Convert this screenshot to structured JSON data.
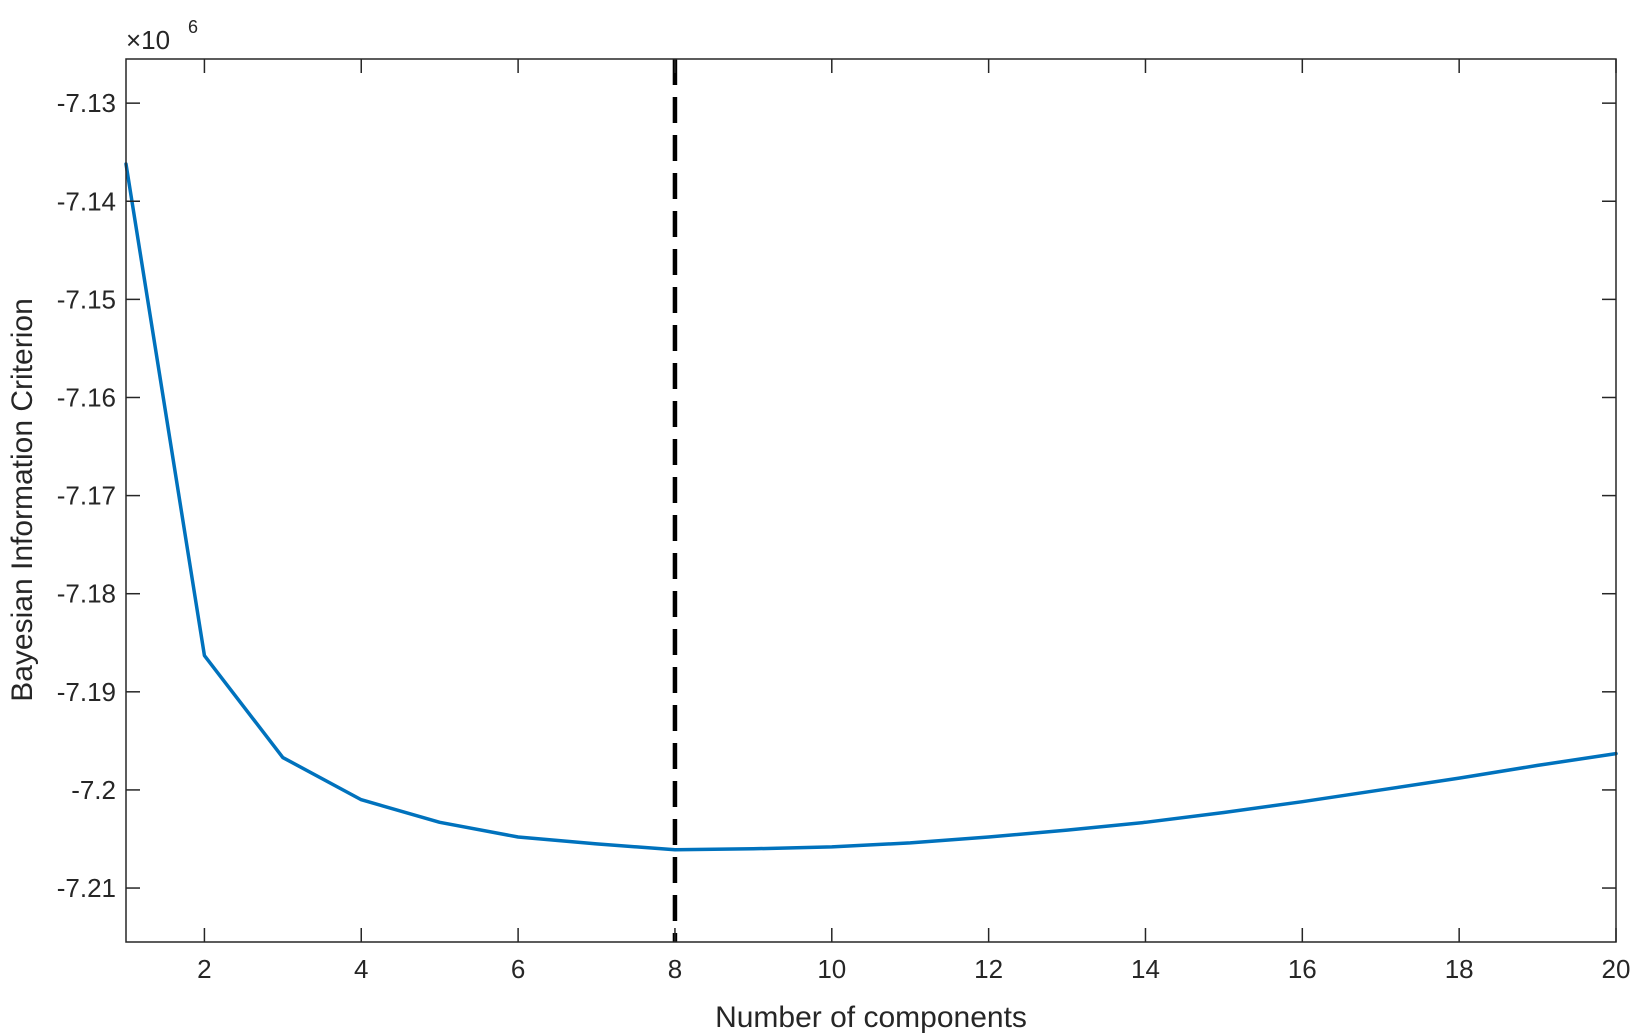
{
  "chart_data": {
    "type": "line",
    "xlabel": "Number of components",
    "ylabel": "Bayesian Information Criterion",
    "y_exponent_prefix": "×10",
    "y_exponent_power": "6",
    "xlim": [
      1,
      20
    ],
    "ylim": [
      -7.2155,
      -7.1255
    ],
    "x_ticks": [
      2,
      4,
      6,
      8,
      10,
      12,
      14,
      16,
      18,
      20
    ],
    "x_tick_labels": [
      "2",
      "4",
      "6",
      "8",
      "10",
      "12",
      "14",
      "16",
      "18",
      "20"
    ],
    "y_ticks": [
      -7.21,
      -7.2,
      -7.19,
      -7.18,
      -7.17,
      -7.16,
      -7.15,
      -7.14,
      -7.13
    ],
    "y_tick_labels": [
      "-7.21",
      "-7.2",
      "-7.19",
      "-7.18",
      "-7.17",
      "-7.16",
      "-7.15",
      "-7.14",
      "-7.13"
    ],
    "grid": false,
    "series": [
      {
        "color": "#0072bd",
        "x": [
          1,
          2,
          3,
          4,
          5,
          6,
          7,
          8,
          9,
          10,
          11,
          12,
          13,
          14,
          15,
          16,
          17,
          18,
          19,
          20
        ],
        "y": [
          -7.1362,
          -7.1863,
          -7.1967,
          -7.201,
          -7.2033,
          -7.2048,
          -7.2055,
          -7.2061,
          -7.206,
          -7.2058,
          -7.2054,
          -7.2048,
          -7.2041,
          -7.2033,
          -7.2023,
          -7.2012,
          -7.2,
          -7.1988,
          -7.1975,
          -7.1963
        ]
      }
    ],
    "vertical_line": {
      "x": 8,
      "color": "#000000",
      "style": "dashed"
    }
  }
}
